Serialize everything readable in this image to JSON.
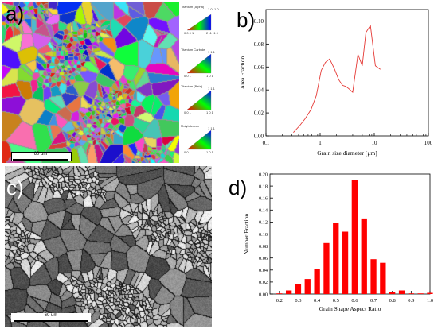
{
  "panels": {
    "a": {
      "label": "a)",
      "scale_bar": "60 um",
      "legend": [
        {
          "name": "Titanium (Alpha)",
          "corners": [
            "0 0 0 1",
            "2 -1 -1 0",
            "1 0 -1 0"
          ]
        },
        {
          "name": "Titanium Carbide",
          "corners": [
            "0 0 1",
            "1 0 1",
            "1 1 1"
          ]
        },
        {
          "name": "Titanium (Beta)",
          "corners": [
            "0 0 1",
            "1 0 1",
            "1 1 1"
          ]
        },
        {
          "name": "Molybdenum",
          "corners": [
            "0 0 1",
            "1 0 1",
            "1 1 1"
          ]
        }
      ]
    },
    "b": {
      "label": "b)"
    },
    "c": {
      "label": "c)",
      "scale_bar": "60 um"
    },
    "d": {
      "label": "d)"
    }
  },
  "chart_data": [
    {
      "type": "line",
      "panel": "b",
      "xlabel": "Grain size diameter [μm]",
      "ylabel": "Area Fraction",
      "xscale": "log",
      "xlim": [
        0.1,
        100
      ],
      "ylim": [
        0,
        0.11
      ],
      "xticks": [
        "0.1",
        "1",
        "10",
        "100"
      ],
      "yticks": [
        "0.00",
        "0.02",
        "0.04",
        "0.06",
        "0.08",
        "0.10"
      ],
      "color": "#e53935",
      "x": [
        0.32,
        0.42,
        0.53,
        0.68,
        0.85,
        1.05,
        1.25,
        1.5,
        1.85,
        2.2,
        2.6,
        3.0,
        3.4,
        4.0,
        5.0,
        6.0,
        7.0,
        8.5,
        10.5,
        13.0
      ],
      "y": [
        0.003,
        0.009,
        0.015,
        0.023,
        0.035,
        0.057,
        0.064,
        0.067,
        0.058,
        0.049,
        0.044,
        0.043,
        0.041,
        0.038,
        0.071,
        0.061,
        0.09,
        0.096,
        0.061,
        0.058
      ]
    },
    {
      "type": "bar",
      "panel": "d",
      "xlabel": "Grain Shape Aspect Ratio",
      "ylabel": "Number Fraction",
      "xlim": [
        0.15,
        1.0
      ],
      "ylim": [
        0,
        0.2
      ],
      "xticks": [
        "0.2",
        "0.3",
        "0.4",
        "0.5",
        "0.6",
        "0.7",
        "0.8",
        "0.9",
        "1.0"
      ],
      "yticks": [
        "0.00",
        "0.02",
        "0.04",
        "0.06",
        "0.08",
        "0.10",
        "0.12",
        "0.14",
        "0.16",
        "0.18",
        "0.20"
      ],
      "color": "#ff0000",
      "x": [
        0.2,
        0.25,
        0.3,
        0.35,
        0.4,
        0.45,
        0.5,
        0.55,
        0.6,
        0.65,
        0.7,
        0.75,
        0.8,
        0.85,
        0.9,
        0.95,
        1.0
      ],
      "values": [
        0.001,
        0.006,
        0.016,
        0.025,
        0.041,
        0.085,
        0.118,
        0.104,
        0.19,
        0.126,
        0.058,
        0.052,
        0.004,
        0.006,
        0.001,
        0.001,
        0.002
      ]
    }
  ]
}
